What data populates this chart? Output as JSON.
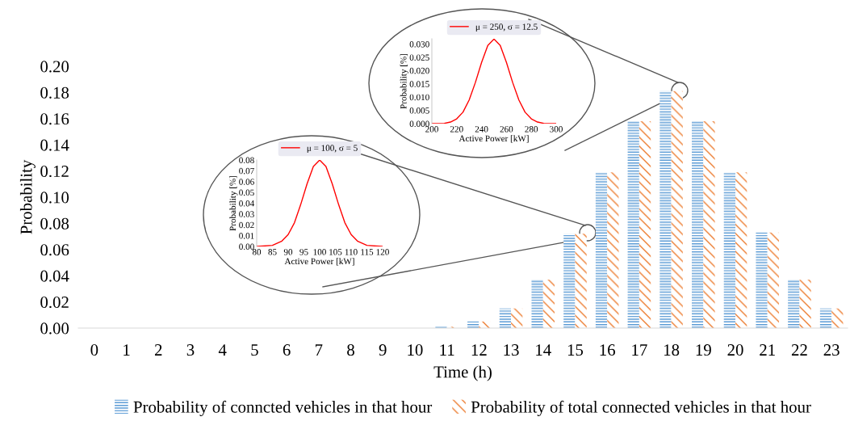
{
  "chart_data": [
    {
      "type": "bar",
      "xlabel": "Time (h)",
      "ylabel": "Probability",
      "categories": [
        "0",
        "1",
        "2",
        "3",
        "4",
        "5",
        "6",
        "7",
        "8",
        "9",
        "10",
        "11",
        "12",
        "13",
        "14",
        "15",
        "16",
        "17",
        "18",
        "19",
        "20",
        "21",
        "22",
        "23"
      ],
      "series": [
        {
          "name": "Probability of conncted vehicles in that hour",
          "color": "#5b9bd5",
          "values": [
            0,
            0,
            0,
            0,
            0,
            0,
            0,
            0,
            0,
            0,
            0,
            0.001,
            0.005,
            0.015,
            0.037,
            0.072,
            0.119,
            0.158,
            0.181,
            0.158,
            0.119,
            0.073,
            0.037,
            0.015
          ]
        },
        {
          "name": "Probability of total connected vehicles in that hour",
          "color": "#ed7d31",
          "values": [
            0,
            0,
            0,
            0,
            0,
            0,
            0,
            0,
            0,
            0,
            0,
            0.001,
            0.005,
            0.015,
            0.037,
            0.072,
            0.119,
            0.158,
            0.181,
            0.158,
            0.119,
            0.073,
            0.037,
            0.015
          ]
        }
      ],
      "ylim": [
        0,
        0.2
      ],
      "yticks": [
        {
          "value": 0,
          "label": "0.00"
        },
        {
          "value": 0.02,
          "label": "0.02"
        },
        {
          "value": 0.04,
          "label": "0.04"
        },
        {
          "value": 0.06,
          "label": "0.06"
        },
        {
          "value": 0.08,
          "label": "0.08"
        },
        {
          "value": 0.1,
          "label": "0.10"
        },
        {
          "value": 0.12,
          "label": "0.12"
        },
        {
          "value": 0.14,
          "label": "0.14"
        },
        {
          "value": 0.16,
          "label": "0.16"
        },
        {
          "value": 0.18,
          "label": "0.18"
        },
        {
          "value": 0.2,
          "label": "0.20"
        }
      ],
      "legend": "bottom",
      "grid": false
    },
    {
      "type": "line",
      "xlabel": "Active Power [kW]",
      "ylabel": "Probability [%]",
      "x": [
        80,
        85,
        88,
        90,
        92,
        94,
        96,
        98,
        100,
        102,
        104,
        106,
        108,
        110,
        112,
        115,
        120
      ],
      "series": [
        {
          "name": "μ = 100, σ = 5",
          "color": "#ff0000",
          "values": [
            0,
            0.001,
            0.005,
            0.011,
            0.022,
            0.039,
            0.058,
            0.074,
            0.08,
            0.074,
            0.058,
            0.039,
            0.022,
            0.011,
            0.005,
            0.001,
            0
          ]
        }
      ],
      "xlim": [
        80,
        120
      ],
      "xticks": [
        80,
        85,
        90,
        95,
        100,
        105,
        110,
        115,
        120
      ],
      "ylim": [
        0,
        0.08
      ],
      "yticks": [
        {
          "value": 0,
          "label": "0.00"
        },
        {
          "value": 0.01,
          "label": "0.01"
        },
        {
          "value": 0.02,
          "label": "0.02"
        },
        {
          "value": 0.03,
          "label": "0.03"
        },
        {
          "value": 0.04,
          "label": "0.04"
        },
        {
          "value": 0.05,
          "label": "0.05"
        },
        {
          "value": 0.06,
          "label": "0.06"
        },
        {
          "value": 0.07,
          "label": "0.07"
        },
        {
          "value": 0.08,
          "label": "0.08"
        }
      ],
      "legend": "top",
      "grid": false
    },
    {
      "type": "line",
      "xlabel": "Active Power [kW]",
      "ylabel": "Probability [%]",
      "x": [
        200,
        210,
        215,
        220,
        225,
        230,
        235,
        240,
        245,
        250,
        255,
        260,
        265,
        270,
        275,
        280,
        285,
        290,
        300
      ],
      "series": [
        {
          "name": "μ = 250, σ = 12.5",
          "color": "#ff0000",
          "values": [
            0,
            0.0001,
            0.0006,
            0.0018,
            0.0043,
            0.0089,
            0.0155,
            0.0231,
            0.0295,
            0.0319,
            0.0295,
            0.0231,
            0.0155,
            0.0089,
            0.0043,
            0.0018,
            0.0006,
            0.0001,
            0
          ]
        }
      ],
      "xlim": [
        200,
        300
      ],
      "xticks": [
        200,
        220,
        240,
        260,
        280,
        300
      ],
      "ylim": [
        0,
        0.032
      ],
      "yticks": [
        {
          "value": 0,
          "label": "0.000"
        },
        {
          "value": 0.005,
          "label": "0.005"
        },
        {
          "value": 0.01,
          "label": "0.010"
        },
        {
          "value": 0.015,
          "label": "0.015"
        },
        {
          "value": 0.02,
          "label": "0.020"
        },
        {
          "value": 0.025,
          "label": "0.025"
        },
        {
          "value": 0.03,
          "label": "0.030"
        }
      ],
      "legend": "top",
      "grid": false
    }
  ]
}
